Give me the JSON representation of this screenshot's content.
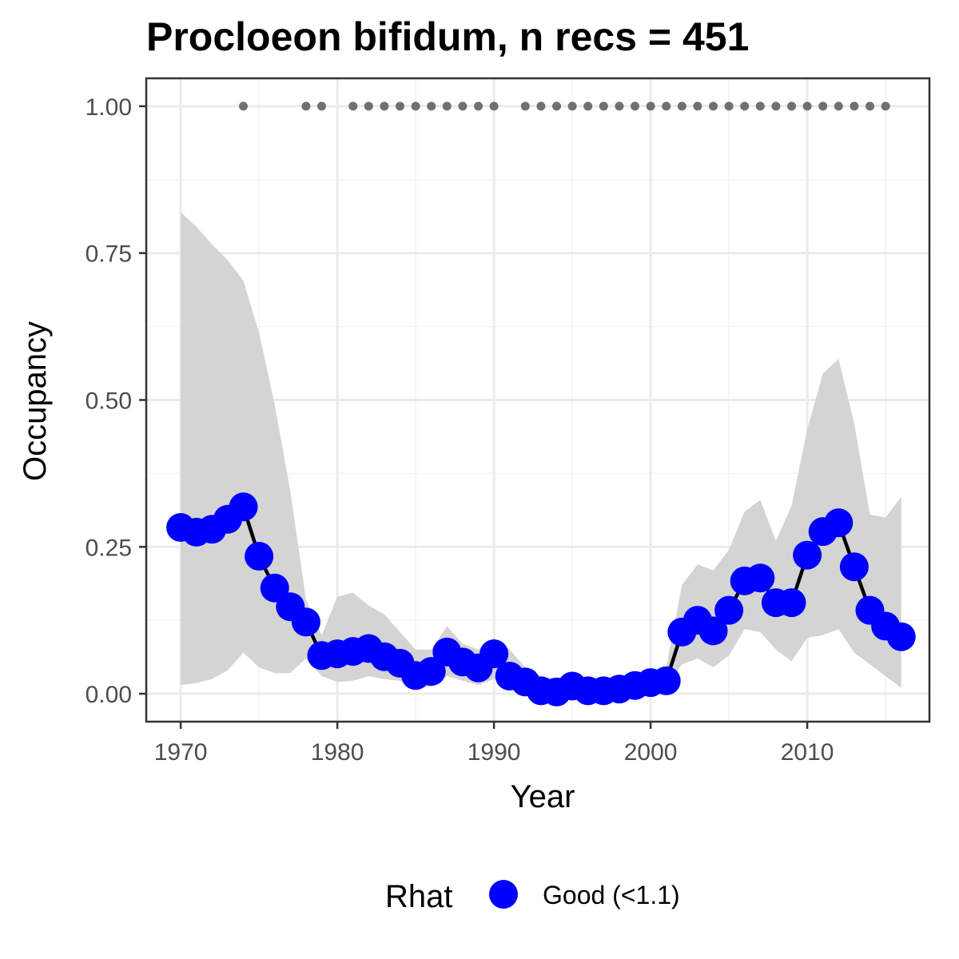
{
  "chart_data": {
    "type": "line",
    "title": "Procloeon bifidum, n recs = 451",
    "xlabel": "Year",
    "ylabel": "Occupancy",
    "xlim": [
      1967.8,
      2017.8
    ],
    "ylim": [
      -0.0475,
      1.0475
    ],
    "x_ticks": [
      1970,
      1980,
      1990,
      2000,
      2010
    ],
    "x_tick_labels": [
      "1970",
      "1980",
      "1990",
      "2000",
      "2010"
    ],
    "y_ticks": [
      0,
      0.25,
      0.5,
      0.75,
      1.0
    ],
    "y_tick_labels": [
      "0.00",
      "0.25",
      "0.50",
      "0.75",
      "1.00"
    ],
    "grid": true,
    "legend": {
      "title": "Rhat",
      "placement": "bottom",
      "entries": [
        {
          "label": "Good (<1.1)",
          "color": "#0000ff"
        }
      ]
    },
    "series": [
      {
        "name": "Good (<1.1)",
        "color": "#0000ff",
        "line_color": "#000000",
        "x": [
          1970,
          1971,
          1972,
          1973,
          1974,
          1975,
          1976,
          1977,
          1978,
          1979,
          1980,
          1981,
          1982,
          1983,
          1984,
          1985,
          1986,
          1987,
          1988,
          1989,
          1990,
          1991,
          1992,
          1993,
          1994,
          1995,
          1996,
          1997,
          1998,
          1999,
          2000,
          2001,
          2002,
          2003,
          2004,
          2005,
          2006,
          2007,
          2008,
          2009,
          2010,
          2011,
          2012,
          2013,
          2014,
          2015,
          2016
        ],
        "values": [
          0.283,
          0.275,
          0.28,
          0.297,
          0.318,
          0.234,
          0.18,
          0.148,
          0.122,
          0.065,
          0.068,
          0.072,
          0.077,
          0.063,
          0.052,
          0.031,
          0.038,
          0.071,
          0.054,
          0.044,
          0.068,
          0.03,
          0.02,
          0.005,
          0.003,
          0.013,
          0.005,
          0.005,
          0.008,
          0.014,
          0.019,
          0.022,
          0.105,
          0.125,
          0.107,
          0.142,
          0.192,
          0.197,
          0.155,
          0.155,
          0.236,
          0.276,
          0.291,
          0.216,
          0.142,
          0.115,
          0.097
        ]
      }
    ],
    "ci_band": {
      "x": [
        1970,
        1971,
        1972,
        1973,
        1974,
        1975,
        1976,
        1977,
        1978,
        1979,
        1980,
        1981,
        1982,
        1983,
        1984,
        1985,
        1986,
        1987,
        1988,
        1989,
        1990,
        1991,
        1992,
        1993,
        1994,
        1995,
        1996,
        1997,
        1998,
        1999,
        2000,
        2001,
        2002,
        2003,
        2004,
        2005,
        2006,
        2007,
        2008,
        2009,
        2010,
        2011,
        2012,
        2013,
        2014,
        2015,
        2016
      ],
      "upper": [
        0.82,
        0.795,
        0.765,
        0.738,
        0.703,
        0.615,
        0.492,
        0.345,
        0.16,
        0.1,
        0.165,
        0.172,
        0.15,
        0.135,
        0.105,
        0.075,
        0.075,
        0.115,
        0.085,
        0.075,
        0.095,
        0.075,
        0.045,
        0.03,
        0.025,
        0.035,
        0.025,
        0.025,
        0.03,
        0.035,
        0.04,
        0.045,
        0.185,
        0.22,
        0.21,
        0.245,
        0.31,
        0.33,
        0.26,
        0.32,
        0.45,
        0.545,
        0.57,
        0.46,
        0.305,
        0.3,
        0.335
      ],
      "lower": [
        0.015,
        0.018,
        0.025,
        0.04,
        0.07,
        0.045,
        0.035,
        0.035,
        0.06,
        0.03,
        0.02,
        0.022,
        0.03,
        0.025,
        0.022,
        0.01,
        0.012,
        0.03,
        0.022,
        0.015,
        0.025,
        0.01,
        0.005,
        0.001,
        0.0,
        0.003,
        0.001,
        0.001,
        0.002,
        0.004,
        0.006,
        0.008,
        0.05,
        0.06,
        0.045,
        0.065,
        0.11,
        0.105,
        0.075,
        0.055,
        0.095,
        0.1,
        0.11,
        0.07,
        0.05,
        0.03,
        0.01
      ]
    },
    "record_years": {
      "y": 1.0,
      "x": [
        1974,
        1978,
        1979,
        1981,
        1982,
        1983,
        1984,
        1985,
        1986,
        1987,
        1988,
        1989,
        1990,
        1992,
        1993,
        1994,
        1995,
        1996,
        1997,
        1998,
        1999,
        2000,
        2001,
        2002,
        2003,
        2004,
        2005,
        2006,
        2007,
        2008,
        2009,
        2010,
        2011,
        2012,
        2013,
        2014,
        2015
      ]
    },
    "colors": {
      "point": "#0000ff",
      "line": "#000000",
      "ribbon": "#d4d4d4",
      "record_dot": "#707070",
      "grid_major": "#ebebeb",
      "grid_minor": "#f2f2f2",
      "panel_border": "#333333",
      "tick_text": "#4d4d4d"
    }
  }
}
